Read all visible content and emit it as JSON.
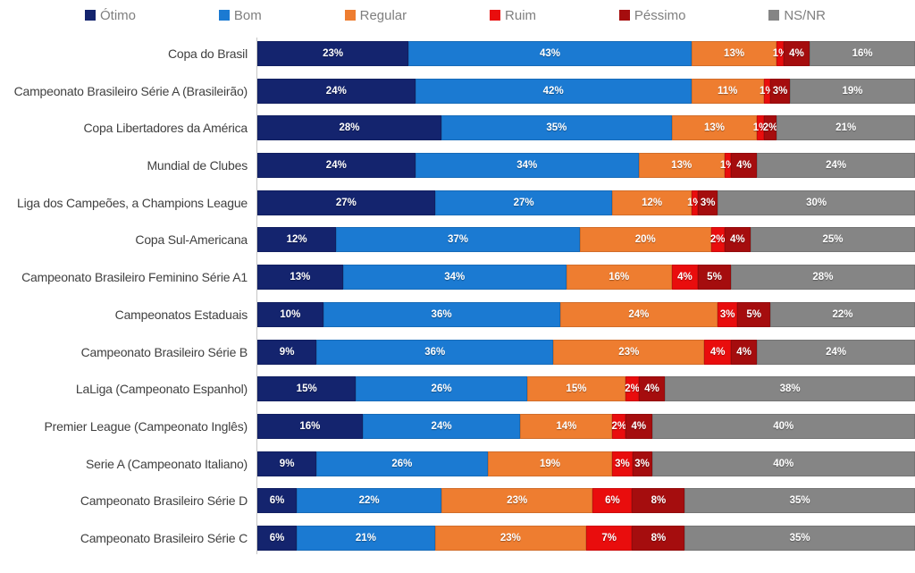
{
  "legend": {
    "items": [
      {
        "label": "Ótimo",
        "color": "#14246e",
        "icon": "legend-swatch-otimo-icon"
      },
      {
        "label": "Bom",
        "color": "#1b7ad2",
        "icon": "legend-swatch-bom-icon"
      },
      {
        "label": "Regular",
        "color": "#ee7d30",
        "icon": "legend-swatch-regular-icon"
      },
      {
        "label": "Ruim",
        "color": "#e90d0d",
        "icon": "legend-swatch-ruim-icon"
      },
      {
        "label": "Péssimo",
        "color": "#a50d0e",
        "icon": "legend-swatch-pessimo-icon"
      },
      {
        "label": "NS/NR",
        "color": "#858585",
        "icon": "legend-swatch-nsnr-icon"
      }
    ]
  },
  "chart_data": {
    "type": "bar",
    "orientation": "horizontal",
    "stacked": true,
    "unit": "%",
    "xlim": [
      0,
      100
    ],
    "grid": false,
    "legend_position": "top",
    "value_labels": "inside segments, white bold, format N%",
    "categories": [
      "Copa do Brasil",
      "Campeonato Brasileiro Série A (Brasileirão)",
      "Copa Libertadores da América",
      "Mundial de Clubes",
      "Liga dos Campeões, a Champions League",
      "Copa Sul-Americana",
      "Campeonato Brasileiro Feminino Série A1",
      "Campeonatos Estaduais",
      "Campeonato Brasileiro Série B",
      "LaLiga (Campeonato Espanhol)",
      "Premier League (Campeonato Inglês)",
      "Serie A (Campeonato Italiano)",
      "Campeonato Brasileiro Série D",
      "Campeonato Brasileiro Série C"
    ],
    "series": [
      {
        "name": "Ótimo",
        "color": "#14246e",
        "values": [
          23,
          24,
          28,
          24,
          27,
          12,
          13,
          10,
          9,
          15,
          16,
          9,
          6,
          6
        ]
      },
      {
        "name": "Bom",
        "color": "#1b7ad2",
        "values": [
          43,
          42,
          35,
          34,
          27,
          37,
          34,
          36,
          36,
          26,
          24,
          26,
          22,
          21
        ]
      },
      {
        "name": "Regular",
        "color": "#ee7d30",
        "values": [
          13,
          11,
          13,
          13,
          12,
          20,
          16,
          24,
          23,
          15,
          14,
          19,
          23,
          23
        ]
      },
      {
        "name": "Ruim",
        "color": "#e90d0d",
        "values": [
          1,
          1,
          1,
          1,
          1,
          2,
          4,
          3,
          4,
          2,
          2,
          3,
          6,
          7
        ]
      },
      {
        "name": "Péssimo",
        "color": "#a50d0e",
        "values": [
          4,
          3,
          2,
          4,
          3,
          4,
          5,
          5,
          4,
          4,
          4,
          3,
          8,
          8
        ]
      },
      {
        "name": "NS/NR",
        "color": "#858585",
        "values": [
          16,
          19,
          21,
          24,
          30,
          25,
          28,
          22,
          24,
          38,
          40,
          40,
          35,
          35
        ]
      }
    ]
  }
}
